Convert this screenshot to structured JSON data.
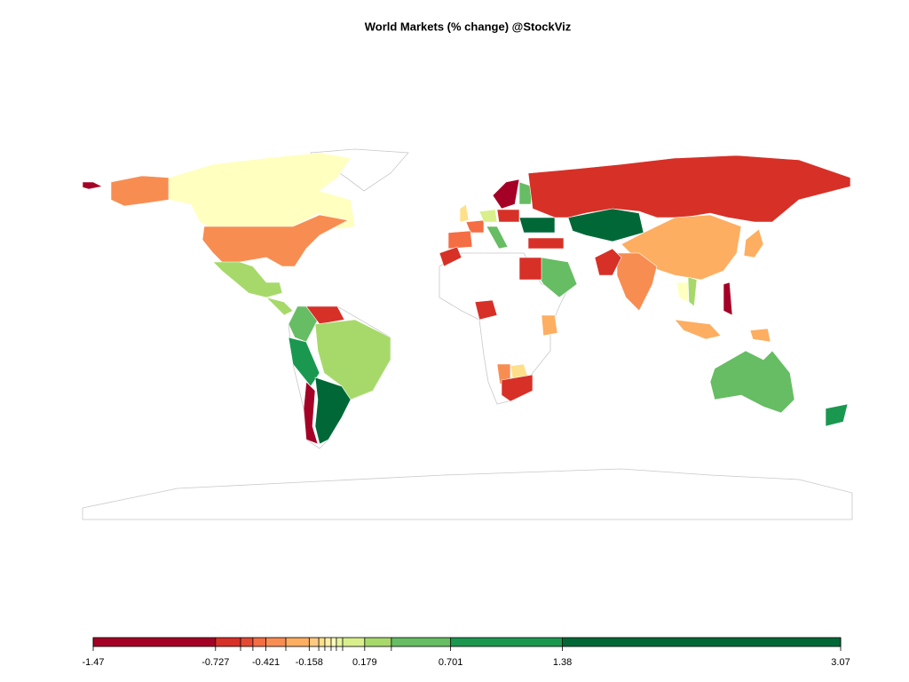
{
  "chart_data": {
    "type": "map",
    "title": "World Markets (% change) @StockViz",
    "xlim": [
      -1.47,
      3.07
    ],
    "xticks": [
      -1.47,
      -0.727,
      {
        "value": -0.575,
        "label": null
      },
      {
        "value": -0.5,
        "label": null
      },
      -0.421,
      {
        "value": -0.3,
        "label": null
      },
      -0.158,
      {
        "value": -0.1,
        "label": null
      },
      {
        "value": -0.063,
        "label": null
      },
      {
        "value": -0.025,
        "label": null
      },
      {
        "value": 0.007,
        "label": null
      },
      {
        "value": 0.045,
        "label": null
      },
      0.179,
      {
        "value": 0.341,
        "label": null
      },
      0.701,
      1.38,
      3.07
    ],
    "colors": [
      "#a50026",
      "#d73027",
      "#e34a33",
      "#f46d43",
      "#f88d52",
      "#fdae61",
      "#fec981",
      "#fee08b",
      "#fff0a6",
      "#ffffbf",
      "#e6f59d",
      "#d9ef8b",
      "#a6d96a",
      "#66bd63",
      "#1a9850",
      "#006837"
    ]
  }
}
